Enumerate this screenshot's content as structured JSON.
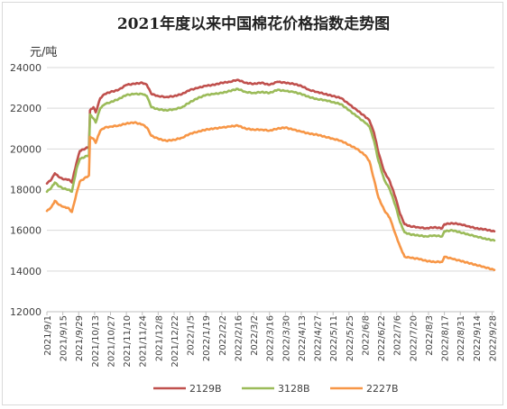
{
  "chart_data": {
    "type": "line",
    "title": "2021年度以来中国棉花价格指数走势图",
    "ylabel": "元/吨",
    "xlabel": "",
    "ylim": [
      12000,
      24000
    ],
    "yticks": [
      12000,
      14000,
      16000,
      18000,
      20000,
      22000,
      24000
    ],
    "xlim": [
      "2021-09-01",
      "2022-09-30"
    ],
    "x_tick_labels": [
      "2021/9/1",
      "2021/9/15",
      "2021/9/29",
      "2021/10/13",
      "2021/10/27",
      "2021/11/10",
      "2021/11/24",
      "2021/12/8",
      "2021/12/22",
      "2022/1/5",
      "2022/1/19",
      "2022/2/2",
      "2022/2/16",
      "2022/3/2",
      "2022/3/16",
      "2022/3/30",
      "2022/4/13",
      "2022/4/27",
      "2022/5/11",
      "2022/5/25",
      "2022/6/8",
      "2022/6/22",
      "2022/7/6",
      "2022/7/20",
      "2022/8/3",
      "2022/8/17",
      "2022/8/31",
      "2022/9/14",
      "2022/9/28"
    ],
    "grid": "horizontal",
    "legend": "bottom",
    "series": [
      {
        "name": "2129B",
        "color": "#c0504d",
        "points": [
          [
            "2021-09-01",
            18300
          ],
          [
            "2021-09-05",
            18500
          ],
          [
            "2021-09-08",
            18800
          ],
          [
            "2021-09-12",
            18600
          ],
          [
            "2021-09-16",
            18500
          ],
          [
            "2021-09-20",
            18500
          ],
          [
            "2021-09-23",
            18350
          ],
          [
            "2021-09-27",
            19300
          ],
          [
            "2021-09-30",
            19900
          ],
          [
            "2021-10-08",
            20100
          ],
          [
            "2021-10-09",
            21900
          ],
          [
            "2021-10-12",
            22050
          ],
          [
            "2021-10-14",
            21800
          ],
          [
            "2021-10-18",
            22500
          ],
          [
            "2021-10-22",
            22700
          ],
          [
            "2021-10-27",
            22800
          ],
          [
            "2021-11-03",
            22900
          ],
          [
            "2021-11-10",
            23150
          ],
          [
            "2021-11-17",
            23200
          ],
          [
            "2021-11-24",
            23250
          ],
          [
            "2021-11-28",
            23150
          ],
          [
            "2021-12-02",
            22700
          ],
          [
            "2021-12-08",
            22600
          ],
          [
            "2021-12-15",
            22550
          ],
          [
            "2021-12-22",
            22600
          ],
          [
            "2021-12-29",
            22700
          ],
          [
            "2022-01-05",
            22900
          ],
          [
            "2022-01-12",
            23000
          ],
          [
            "2022-01-19",
            23100
          ],
          [
            "2022-01-26",
            23150
          ],
          [
            "2022-02-02",
            23250
          ],
          [
            "2022-02-09",
            23300
          ],
          [
            "2022-02-16",
            23400
          ],
          [
            "2022-02-23",
            23250
          ],
          [
            "2022-03-02",
            23200
          ],
          [
            "2022-03-09",
            23250
          ],
          [
            "2022-03-16",
            23150
          ],
          [
            "2022-03-23",
            23300
          ],
          [
            "2022-03-30",
            23250
          ],
          [
            "2022-04-06",
            23200
          ],
          [
            "2022-04-13",
            23100
          ],
          [
            "2022-04-20",
            22900
          ],
          [
            "2022-04-27",
            22800
          ],
          [
            "2022-05-04",
            22700
          ],
          [
            "2022-05-11",
            22600
          ],
          [
            "2022-05-18",
            22500
          ],
          [
            "2022-05-25",
            22200
          ],
          [
            "2022-06-01",
            21900
          ],
          [
            "2022-06-08",
            21600
          ],
          [
            "2022-06-12",
            21400
          ],
          [
            "2022-06-16",
            20800
          ],
          [
            "2022-06-20",
            19800
          ],
          [
            "2022-06-25",
            18900
          ],
          [
            "2022-06-30",
            18400
          ],
          [
            "2022-07-05",
            17600
          ],
          [
            "2022-07-09",
            16800
          ],
          [
            "2022-07-13",
            16300
          ],
          [
            "2022-07-18",
            16200
          ],
          [
            "2022-07-25",
            16150
          ],
          [
            "2022-08-01",
            16100
          ],
          [
            "2022-08-08",
            16150
          ],
          [
            "2022-08-15",
            16100
          ],
          [
            "2022-08-17",
            16300
          ],
          [
            "2022-08-24",
            16350
          ],
          [
            "2022-08-31",
            16300
          ],
          [
            "2022-09-07",
            16200
          ],
          [
            "2022-09-14",
            16100
          ],
          [
            "2022-09-21",
            16050
          ],
          [
            "2022-09-30",
            15950
          ]
        ]
      },
      {
        "name": "3128B",
        "color": "#9bbb59",
        "points": [
          [
            "2021-09-01",
            17900
          ],
          [
            "2021-09-05",
            18100
          ],
          [
            "2021-09-08",
            18350
          ],
          [
            "2021-09-12",
            18150
          ],
          [
            "2021-09-16",
            18050
          ],
          [
            "2021-09-20",
            18000
          ],
          [
            "2021-09-23",
            17900
          ],
          [
            "2021-09-27",
            19000
          ],
          [
            "2021-09-30",
            19500
          ],
          [
            "2021-10-08",
            19700
          ],
          [
            "2021-10-09",
            21700
          ],
          [
            "2021-10-12",
            21500
          ],
          [
            "2021-10-14",
            21300
          ],
          [
            "2021-10-18",
            22000
          ],
          [
            "2021-10-22",
            22200
          ],
          [
            "2021-10-27",
            22300
          ],
          [
            "2021-11-03",
            22450
          ],
          [
            "2021-11-10",
            22650
          ],
          [
            "2021-11-17",
            22700
          ],
          [
            "2021-11-24",
            22700
          ],
          [
            "2021-11-28",
            22600
          ],
          [
            "2021-12-02",
            22050
          ],
          [
            "2021-12-08",
            21950
          ],
          [
            "2021-12-15",
            21900
          ],
          [
            "2021-12-22",
            21950
          ],
          [
            "2021-12-29",
            22050
          ],
          [
            "2022-01-05",
            22300
          ],
          [
            "2022-01-12",
            22500
          ],
          [
            "2022-01-19",
            22650
          ],
          [
            "2022-01-26",
            22700
          ],
          [
            "2022-02-02",
            22750
          ],
          [
            "2022-02-09",
            22850
          ],
          [
            "2022-02-16",
            22950
          ],
          [
            "2022-02-23",
            22800
          ],
          [
            "2022-03-02",
            22750
          ],
          [
            "2022-03-09",
            22800
          ],
          [
            "2022-03-16",
            22750
          ],
          [
            "2022-03-23",
            22900
          ],
          [
            "2022-03-30",
            22850
          ],
          [
            "2022-04-06",
            22800
          ],
          [
            "2022-04-13",
            22700
          ],
          [
            "2022-04-20",
            22550
          ],
          [
            "2022-04-27",
            22450
          ],
          [
            "2022-05-04",
            22400
          ],
          [
            "2022-05-11",
            22300
          ],
          [
            "2022-05-18",
            22200
          ],
          [
            "2022-05-25",
            21900
          ],
          [
            "2022-06-01",
            21600
          ],
          [
            "2022-06-08",
            21300
          ],
          [
            "2022-06-12",
            21100
          ],
          [
            "2022-06-16",
            20400
          ],
          [
            "2022-06-20",
            19400
          ],
          [
            "2022-06-25",
            18500
          ],
          [
            "2022-06-30",
            18000
          ],
          [
            "2022-07-05",
            17200
          ],
          [
            "2022-07-09",
            16400
          ],
          [
            "2022-07-13",
            15900
          ],
          [
            "2022-07-18",
            15800
          ],
          [
            "2022-07-25",
            15750
          ],
          [
            "2022-08-01",
            15700
          ],
          [
            "2022-08-08",
            15750
          ],
          [
            "2022-08-15",
            15700
          ],
          [
            "2022-08-17",
            15950
          ],
          [
            "2022-08-24",
            16000
          ],
          [
            "2022-08-31",
            15900
          ],
          [
            "2022-09-07",
            15800
          ],
          [
            "2022-09-14",
            15700
          ],
          [
            "2022-09-21",
            15600
          ],
          [
            "2022-09-30",
            15500
          ]
        ]
      },
      {
        "name": "2227B",
        "color": "#f79646",
        "points": [
          [
            "2021-09-01",
            16950
          ],
          [
            "2021-09-05",
            17150
          ],
          [
            "2021-09-08",
            17450
          ],
          [
            "2021-09-12",
            17250
          ],
          [
            "2021-09-16",
            17150
          ],
          [
            "2021-09-20",
            17100
          ],
          [
            "2021-09-23",
            16900
          ],
          [
            "2021-09-27",
            17800
          ],
          [
            "2021-09-30",
            18400
          ],
          [
            "2021-10-08",
            18700
          ],
          [
            "2021-10-09",
            20600
          ],
          [
            "2021-10-12",
            20500
          ],
          [
            "2021-10-14",
            20300
          ],
          [
            "2021-10-18",
            20900
          ],
          [
            "2021-10-22",
            21050
          ],
          [
            "2021-10-27",
            21100
          ],
          [
            "2021-11-03",
            21150
          ],
          [
            "2021-11-10",
            21250
          ],
          [
            "2021-11-17",
            21300
          ],
          [
            "2021-11-24",
            21200
          ],
          [
            "2021-11-28",
            21050
          ],
          [
            "2021-12-02",
            20650
          ],
          [
            "2021-12-08",
            20500
          ],
          [
            "2021-12-15",
            20400
          ],
          [
            "2021-12-22",
            20450
          ],
          [
            "2021-12-29",
            20550
          ],
          [
            "2022-01-05",
            20750
          ],
          [
            "2022-01-12",
            20850
          ],
          [
            "2022-01-19",
            20950
          ],
          [
            "2022-01-26",
            21000
          ],
          [
            "2022-02-02",
            21050
          ],
          [
            "2022-02-09",
            21100
          ],
          [
            "2022-02-16",
            21150
          ],
          [
            "2022-02-23",
            21000
          ],
          [
            "2022-03-02",
            20950
          ],
          [
            "2022-03-09",
            20950
          ],
          [
            "2022-03-16",
            20900
          ],
          [
            "2022-03-23",
            21000
          ],
          [
            "2022-03-30",
            21050
          ],
          [
            "2022-04-06",
            20950
          ],
          [
            "2022-04-13",
            20850
          ],
          [
            "2022-04-20",
            20750
          ],
          [
            "2022-04-27",
            20700
          ],
          [
            "2022-05-04",
            20600
          ],
          [
            "2022-05-11",
            20500
          ],
          [
            "2022-05-18",
            20400
          ],
          [
            "2022-05-25",
            20200
          ],
          [
            "2022-06-01",
            20000
          ],
          [
            "2022-06-08",
            19700
          ],
          [
            "2022-06-12",
            19400
          ],
          [
            "2022-06-16",
            18500
          ],
          [
            "2022-06-20",
            17600
          ],
          [
            "2022-06-25",
            17000
          ],
          [
            "2022-06-30",
            16600
          ],
          [
            "2022-07-05",
            15800
          ],
          [
            "2022-07-09",
            15200
          ],
          [
            "2022-07-13",
            14700
          ],
          [
            "2022-07-18",
            14650
          ],
          [
            "2022-07-25",
            14600
          ],
          [
            "2022-08-01",
            14500
          ],
          [
            "2022-08-08",
            14450
          ],
          [
            "2022-08-15",
            14450
          ],
          [
            "2022-08-17",
            14700
          ],
          [
            "2022-08-24",
            14600
          ],
          [
            "2022-08-31",
            14500
          ],
          [
            "2022-09-07",
            14400
          ],
          [
            "2022-09-14",
            14300
          ],
          [
            "2022-09-21",
            14200
          ],
          [
            "2022-09-30",
            14050
          ]
        ]
      }
    ]
  }
}
